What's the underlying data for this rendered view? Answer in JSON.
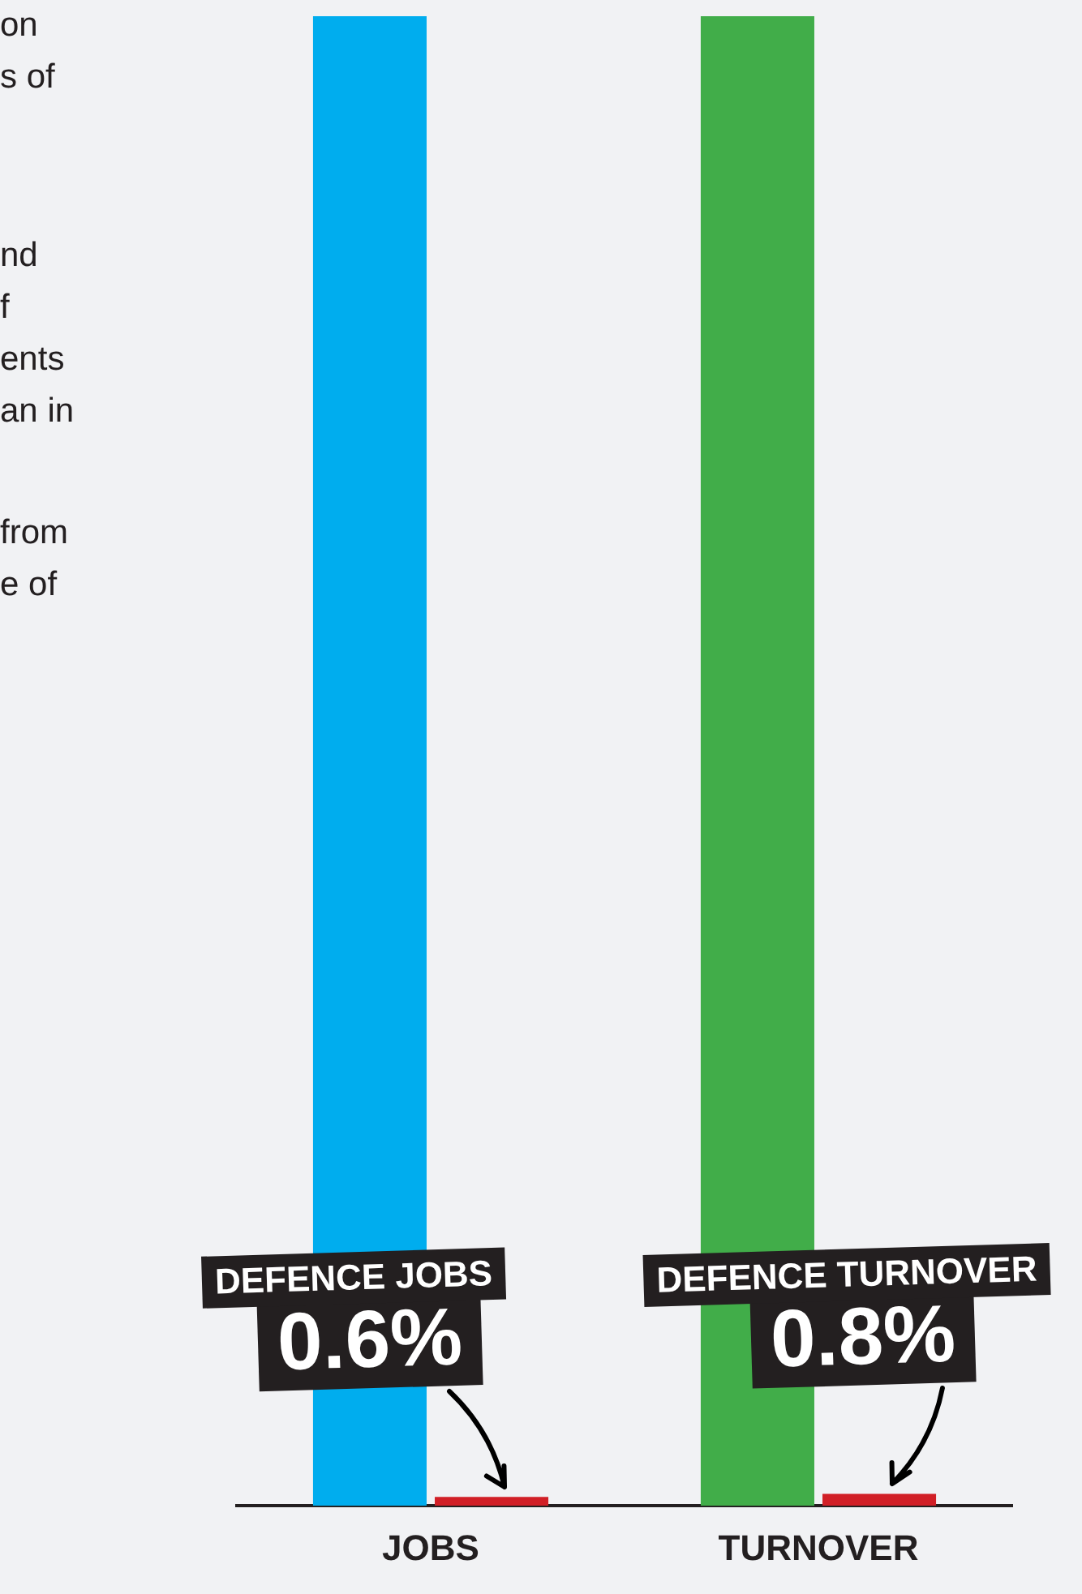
{
  "chart_data": {
    "type": "bar",
    "categories": [
      "JOBS",
      "TURNOVER"
    ],
    "series": [
      {
        "colors": [
          "#00adee",
          "#41ad49"
        ],
        "values": [
          100,
          100
        ]
      },
      {
        "color": "#d11f26",
        "values": [
          0.6,
          0.8
        ],
        "value_labels": [
          "0.6%",
          "0.8%"
        ]
      }
    ],
    "ylim": [
      0,
      100
    ],
    "tick_labels": "x",
    "annotations": [
      "on\ns of",
      "nd\nf\nents\nan in",
      "from\ne of",
      "DEFENCE JOBS",
      "DEFENCE TURNOVER"
    ],
    "legend": false,
    "grid": false
  }
}
